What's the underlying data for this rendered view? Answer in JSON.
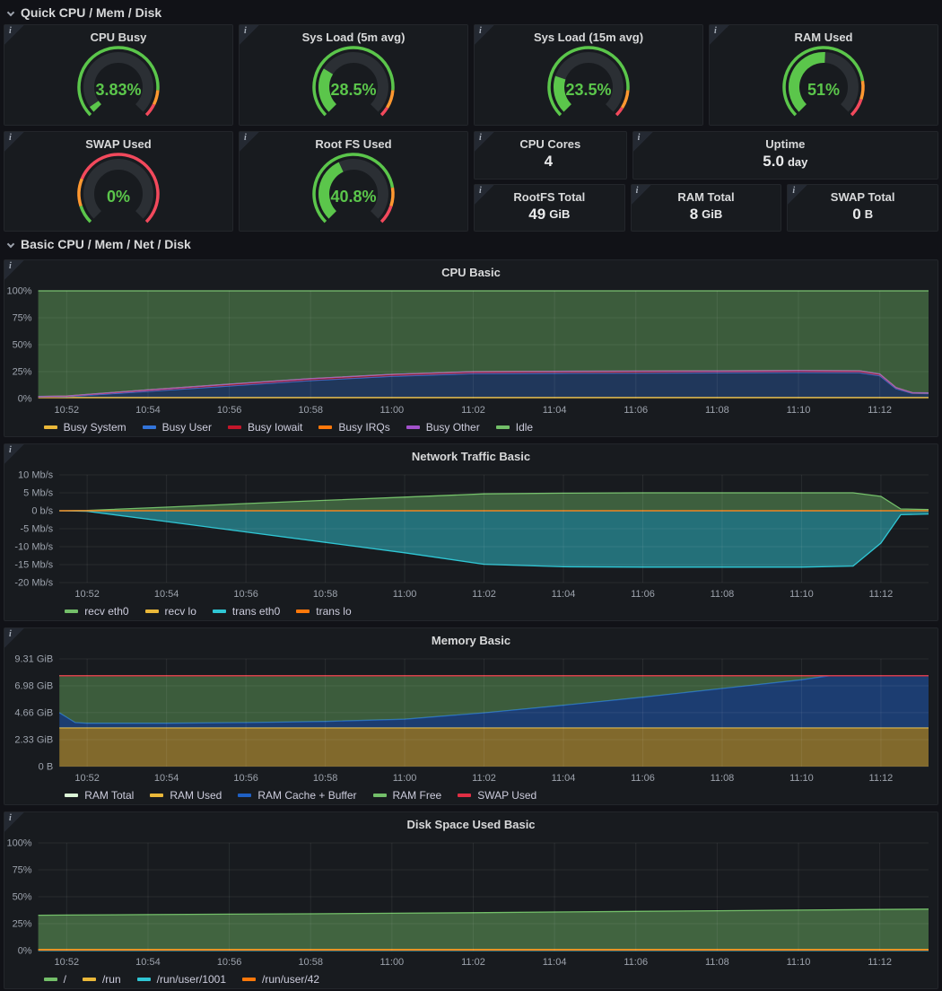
{
  "ui": {
    "info_glyph": "i"
  },
  "colors": {
    "page_bg": "#111217",
    "panel_bg": "#181B1F",
    "panel_border": "#23262B",
    "title": "#D8D9DA",
    "tick": "#9DA3AD",
    "legend_text": "#CCCCDC",
    "gauge_green": "#5BC64B",
    "gauge_orange": "#FF9830",
    "gauge_red": "#F2495C",
    "gauge_track": "#2B2F34",
    "grid": "#FFFFFF"
  },
  "sections": [
    {
      "title": "Quick CPU / Mem / Disk"
    },
    {
      "title": "Basic CPU / Mem / Net / Disk"
    }
  ],
  "gauges": [
    {
      "title": "CPU Busy",
      "value_label": "3.83%",
      "percent": 3.83,
      "thresholds": [
        85,
        93
      ]
    },
    {
      "title": "Sys Load (5m avg)",
      "value_label": "28.5%",
      "percent": 28.5,
      "thresholds": [
        85,
        95
      ]
    },
    {
      "title": "Sys Load (15m avg)",
      "value_label": "23.5%",
      "percent": 23.5,
      "thresholds": [
        85,
        95
      ]
    },
    {
      "title": "RAM Used",
      "value_label": "51%",
      "percent": 51,
      "thresholds": [
        80,
        90
      ]
    },
    {
      "title": "SWAP Used",
      "value_label": "0%",
      "percent": 0,
      "thresholds": [
        10,
        25
      ]
    },
    {
      "title": "Root FS Used",
      "value_label": "40.8%",
      "percent": 40.8,
      "thresholds": [
        80,
        90
      ]
    }
  ],
  "stats": [
    {
      "title": "CPU Cores",
      "value": "4",
      "unit": ""
    },
    {
      "title": "Uptime",
      "value": "5.0",
      "unit": "day"
    },
    {
      "title": "RootFS Total",
      "value": "49",
      "unit": "GiB"
    },
    {
      "title": "RAM Total",
      "value": "8",
      "unit": "GiB"
    },
    {
      "title": "SWAP Total",
      "value": "0",
      "unit": "B"
    }
  ],
  "chart_data": [
    {
      "type": "area",
      "title": "CPU Basic",
      "stacked": true,
      "xlim": [
        1.3,
        23.2
      ],
      "ylim": [
        0,
        100
      ],
      "xticks": {
        "values": [
          2,
          4,
          6,
          8,
          10,
          12,
          14,
          16,
          18,
          20,
          22
        ],
        "labels": [
          "10:52",
          "10:54",
          "10:56",
          "10:58",
          "11:00",
          "11:02",
          "11:04",
          "11:06",
          "11:08",
          "11:10",
          "11:12"
        ]
      },
      "yticks": {
        "values": [
          0,
          25,
          50,
          75,
          100
        ],
        "labels": [
          "0%",
          "25%",
          "50%",
          "75%",
          "100%"
        ]
      },
      "x": [
        1.3,
        2,
        4,
        6,
        8,
        10,
        12,
        14,
        16,
        18,
        20,
        21.5,
        22.0,
        22.4,
        22.8,
        23.2
      ],
      "series": [
        {
          "name": "Busy System",
          "color": "#EAB839",
          "stack": true,
          "fill": 0.55,
          "values": [
            1.2,
            1.2,
            1.2,
            1.2,
            1.2,
            1.2,
            1.2,
            1.2,
            1.2,
            1.2,
            1.2,
            1.2,
            1.2,
            1.2,
            1.2,
            1.2
          ]
        },
        {
          "name": "Busy User",
          "color": "#3274D9",
          "stack": true,
          "fill": 0.32,
          "values": [
            0.3,
            0.6,
            5.5,
            10.5,
            15.5,
            19.5,
            22.0,
            22.3,
            22.5,
            22.7,
            23.0,
            22.8,
            20.0,
            8.0,
            3.6,
            3.4
          ]
        },
        {
          "name": "Busy Iowait",
          "color": "#C4162A",
          "stack": true,
          "fill": 0.55,
          "values": [
            0.2,
            0.4,
            1.2,
            1.5,
            1.6,
            1.6,
            1.6,
            1.6,
            1.6,
            1.6,
            1.6,
            1.6,
            1.4,
            0.8,
            0.5,
            0.5
          ]
        },
        {
          "name": "Busy IRQs",
          "color": "#FF780A",
          "stack": true,
          "fill": 0.55,
          "values": [
            0.15,
            0.15,
            0.15,
            0.15,
            0.15,
            0.15,
            0.15,
            0.15,
            0.15,
            0.15,
            0.15,
            0.15,
            0.15,
            0.15,
            0.15,
            0.15
          ]
        },
        {
          "name": "Busy Other",
          "color": "#A352CC",
          "stack": true,
          "fill": 0.55,
          "values": [
            0.05,
            0.05,
            0.05,
            0.05,
            0.05,
            0.05,
            0.05,
            0.05,
            0.05,
            0.05,
            0.05,
            0.05,
            0.05,
            0.05,
            0.05,
            0.05
          ]
        },
        {
          "name": "Idle",
          "color": "#73BF69",
          "stack": true,
          "fill": 0.4,
          "values": [
            98.1,
            97.6,
            91.9,
            86.6,
            81.5,
            77.5,
            75.0,
            74.7,
            74.5,
            74.3,
            74.0,
            74.2,
            77.2,
            89.8,
            94.5,
            94.7
          ]
        }
      ]
    },
    {
      "type": "area",
      "title": "Network Traffic Basic",
      "stacked": false,
      "xlim": [
        1.3,
        23.2
      ],
      "ylim": [
        -20,
        10
      ],
      "xticks": {
        "values": [
          2,
          4,
          6,
          8,
          10,
          12,
          14,
          16,
          18,
          20,
          22
        ],
        "labels": [
          "10:52",
          "10:54",
          "10:56",
          "10:58",
          "11:00",
          "11:02",
          "11:04",
          "11:06",
          "11:08",
          "11:10",
          "11:12"
        ]
      },
      "yticks": {
        "values": [
          -20,
          -15,
          -10,
          -5,
          0,
          5,
          10
        ],
        "labels": [
          "-20 Mb/s",
          "-15 Mb/s",
          "-10 Mb/s",
          "-5 Mb/s",
          "0 b/s",
          "5 Mb/s",
          "10 Mb/s"
        ]
      },
      "x": [
        1.3,
        2,
        4,
        6,
        8,
        10,
        12,
        14,
        16,
        18,
        20,
        21.3,
        22.0,
        22.5,
        23.2
      ],
      "series": [
        {
          "name": "recv eth0",
          "color": "#73BF69",
          "stack": false,
          "fill": 0.42,
          "values": [
            0,
            0.1,
            1.0,
            2.0,
            2.9,
            3.8,
            4.7,
            4.9,
            5.0,
            5.0,
            5.0,
            5.0,
            4.0,
            0.5,
            0.35
          ]
        },
        {
          "name": "recv lo",
          "color": "#EAB839",
          "stack": false,
          "fill": 0,
          "values": [
            0,
            0,
            0,
            0,
            0,
            0,
            0,
            0,
            0,
            0,
            0,
            0,
            0,
            0,
            0
          ]
        },
        {
          "name": "trans eth0",
          "color": "#2FC6D4",
          "stack": false,
          "fill": 0.5,
          "values": [
            0,
            -0.15,
            -3.0,
            -5.9,
            -8.8,
            -11.7,
            -14.9,
            -15.6,
            -15.7,
            -15.7,
            -15.7,
            -15.4,
            -9.0,
            -1.1,
            -0.9
          ]
        },
        {
          "name": "trans lo",
          "color": "#FF780A",
          "stack": false,
          "fill": 0,
          "values": [
            0,
            0,
            0,
            0,
            0,
            0,
            0,
            0,
            0,
            0,
            0,
            0,
            0,
            0,
            0
          ]
        }
      ]
    },
    {
      "type": "area",
      "title": "Memory Basic",
      "stacked": true,
      "xlim": [
        1.3,
        23.2
      ],
      "ylim": [
        0,
        9.31
      ],
      "xticks": {
        "values": [
          2,
          4,
          6,
          8,
          10,
          12,
          14,
          16,
          18,
          20,
          22
        ],
        "labels": [
          "10:52",
          "10:54",
          "10:56",
          "10:58",
          "11:00",
          "11:02",
          "11:04",
          "11:06",
          "11:08",
          "11:10",
          "11:12"
        ]
      },
      "yticks": {
        "values": [
          0,
          2.33,
          4.66,
          6.98,
          9.31
        ],
        "labels": [
          "0 B",
          "2.33 GiB",
          "4.66 GiB",
          "6.98 GiB",
          "9.31 GiB"
        ]
      },
      "x": [
        1.3,
        1.7,
        2,
        4,
        6,
        8,
        10,
        12,
        14,
        16,
        18,
        20,
        20.7,
        22,
        23.2
      ],
      "series": [
        {
          "name": "RAM Total",
          "color": "#DCF5D7",
          "stack": false,
          "fill": 0,
          "values": [
            7.85,
            7.85,
            7.85,
            7.85,
            7.85,
            7.85,
            7.85,
            7.85,
            7.85,
            7.85,
            7.85,
            7.85,
            7.85,
            7.85,
            7.85
          ]
        },
        {
          "name": "RAM Used",
          "color": "#EAB839",
          "stack": true,
          "fill": 0.5,
          "values": [
            3.35,
            3.35,
            3.35,
            3.35,
            3.35,
            3.35,
            3.35,
            3.35,
            3.35,
            3.35,
            3.35,
            3.35,
            3.35,
            3.35,
            3.35
          ]
        },
        {
          "name": "RAM Cache + Buffer",
          "color": "#1F60C4",
          "stack": true,
          "fill": 0.5,
          "values": [
            1.3,
            0.45,
            0.4,
            0.4,
            0.45,
            0.55,
            0.75,
            1.3,
            1.95,
            2.65,
            3.4,
            4.15,
            4.5,
            4.5,
            4.5
          ]
        },
        {
          "name": "RAM Free",
          "color": "#73BF69",
          "stack": true,
          "fill": 0.4,
          "values": [
            3.2,
            4.05,
            4.1,
            4.1,
            4.05,
            3.95,
            3.75,
            3.2,
            2.55,
            1.85,
            1.1,
            0.35,
            0,
            0,
            0
          ]
        },
        {
          "name": "SWAP Used",
          "color": "#E02F44",
          "stack": true,
          "fill": 0,
          "values": [
            0,
            0,
            0,
            0,
            0,
            0,
            0,
            0,
            0,
            0,
            0,
            0,
            0,
            0,
            0
          ]
        }
      ]
    },
    {
      "type": "area",
      "title": "Disk Space Used Basic",
      "stacked": false,
      "xlim": [
        1.3,
        23.2
      ],
      "ylim": [
        0,
        100
      ],
      "xticks": {
        "values": [
          2,
          4,
          6,
          8,
          10,
          12,
          14,
          16,
          18,
          20,
          22
        ],
        "labels": [
          "10:52",
          "10:54",
          "10:56",
          "10:58",
          "11:00",
          "11:02",
          "11:04",
          "11:06",
          "11:08",
          "11:10",
          "11:12"
        ]
      },
      "yticks": {
        "values": [
          0,
          25,
          50,
          75,
          100
        ],
        "labels": [
          "0%",
          "25%",
          "50%",
          "75%",
          "100%"
        ]
      },
      "x": [
        1.3,
        2,
        4,
        6,
        8,
        10,
        12,
        14,
        16,
        18,
        20,
        22,
        23.2
      ],
      "series": [
        {
          "name": "/",
          "color": "#73BF69",
          "stack": false,
          "fill": 0.45,
          "values": [
            32.8,
            33.0,
            33.4,
            33.8,
            34.2,
            34.7,
            35.2,
            35.8,
            36.4,
            37.0,
            37.6,
            38.2,
            38.5
          ]
        },
        {
          "name": "/run",
          "color": "#EAB839",
          "stack": false,
          "fill": 0,
          "values": [
            1.0,
            1.0,
            1.0,
            1.0,
            1.0,
            1.0,
            1.0,
            1.0,
            1.0,
            1.0,
            1.0,
            1.0,
            1.0
          ]
        },
        {
          "name": "/run/user/1001",
          "color": "#2FC6D4",
          "stack": false,
          "fill": 0,
          "values": [
            0.2,
            0.2,
            0.2,
            0.2,
            0.2,
            0.2,
            0.2,
            0.2,
            0.2,
            0.2,
            0.2,
            0.2,
            0.2
          ]
        },
        {
          "name": "/run/user/42",
          "color": "#FF780A",
          "stack": false,
          "fill": 0,
          "values": [
            0.5,
            0.5,
            0.5,
            0.5,
            0.5,
            0.5,
            0.5,
            0.5,
            0.5,
            0.5,
            0.5,
            0.5,
            0.5
          ]
        }
      ]
    }
  ]
}
